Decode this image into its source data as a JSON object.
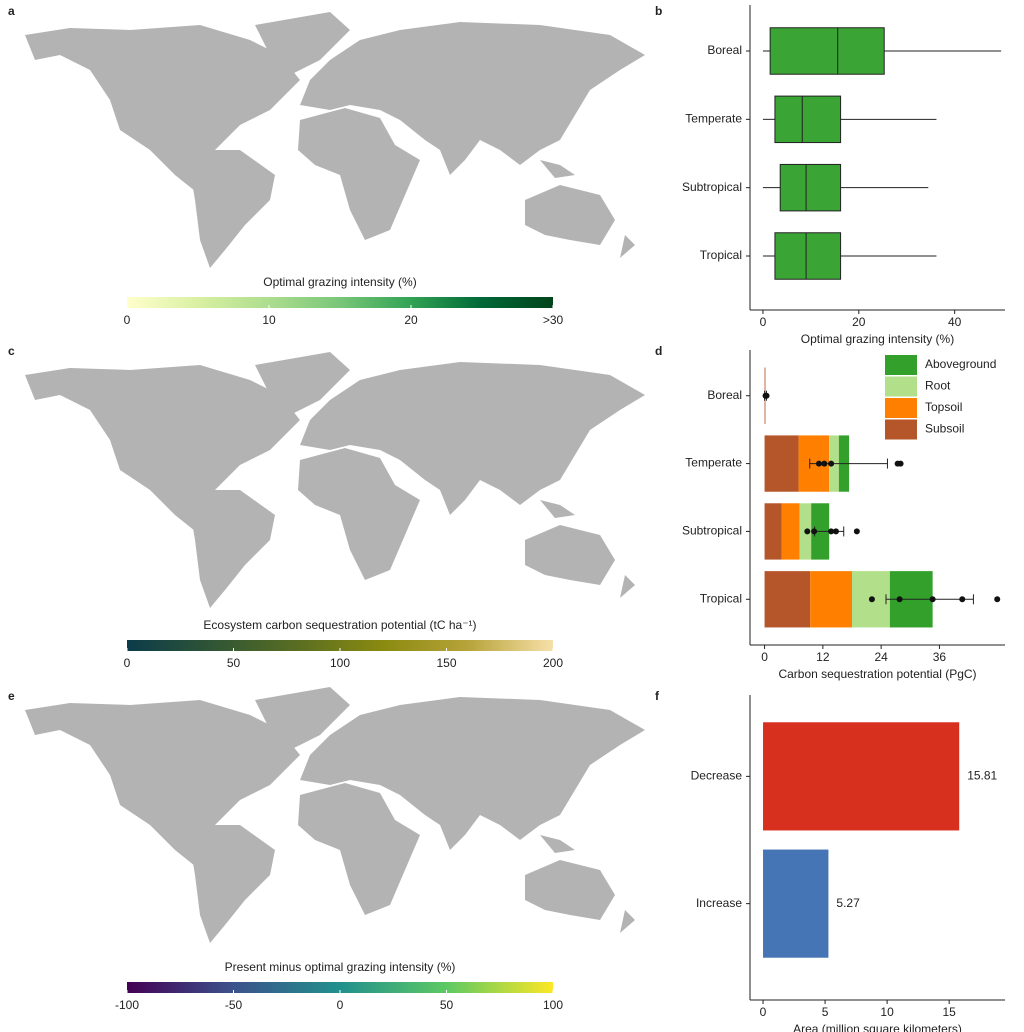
{
  "chart_data": [
    {
      "type": "map",
      "panel": "a",
      "colorbar_label": "Optimal grazing intensity (%)",
      "clim": [
        0,
        30
      ],
      "ticks": [
        0,
        10,
        20,
        {
          "value": 30,
          "label": ">30"
        }
      ],
      "colors": [
        "#ffffcc",
        "#d9f0a3",
        "#addd8e",
        "#78c679",
        "#31a354",
        "#006837",
        "#00441b"
      ]
    },
    {
      "type": "box",
      "panel": "b",
      "xlabel": "Optimal grazing intensity (%)",
      "categories": [
        "Boreal",
        "Temperate",
        "Subtropical",
        "Tropical"
      ],
      "min": [
        0,
        0,
        0,
        0
      ],
      "q1": [
        1.5,
        2.5,
        3.6,
        2.5
      ],
      "median": [
        15.6,
        8.2,
        9,
        9
      ],
      "q3": [
        25.3,
        16.2,
        16.2,
        16.2
      ],
      "max": [
        49.7,
        36.2,
        34.5,
        36.2
      ],
      "color": "#3aa435",
      "xlim": [
        -2.7,
        50.5
      ],
      "xticks": [
        0,
        20,
        40
      ]
    },
    {
      "type": "map",
      "panel": "c",
      "colorbar_label": "Ecosystem carbon sequestration potential (tC ha⁻¹)",
      "clim": [
        0,
        200
      ],
      "ticks": [
        0,
        50,
        100,
        150,
        200
      ],
      "colors": [
        "#0b3b4a",
        "#2f5535",
        "#5a6e22",
        "#8a8a10",
        "#b7a33a",
        "#f7e0a8"
      ]
    },
    {
      "type": "stacked_bar",
      "panel": "d",
      "xlabel": "Carbon sequestration potential (PgC)",
      "categories": [
        "Boreal",
        "Temperate",
        "Subtropical",
        "Tropical"
      ],
      "series": [
        {
          "name": "Subsoil",
          "color": "#b5562a",
          "values": [
            0.1,
            7.0,
            3.5,
            9.4
          ]
        },
        {
          "name": "Topsoil",
          "color": "#ff7f00",
          "values": [
            0.05,
            6.3,
            3.7,
            8.6
          ]
        },
        {
          "name": "Root",
          "color": "#b2df8a",
          "values": [
            0.05,
            2.0,
            2.4,
            7.8
          ]
        },
        {
          "name": "Aboveground",
          "color": "#33a02c",
          "values": [
            0.05,
            2.1,
            3.7,
            8.8
          ]
        }
      ],
      "points": [
        [
          0.2,
          0.4
        ],
        [
          11.2,
          12.3,
          13.7,
          27.4,
          28.0
        ],
        [
          8.8,
          10.2,
          13.7,
          14.7,
          19.0
        ],
        [
          22.1,
          27.8,
          34.6,
          40.7,
          47.9
        ]
      ],
      "error_low": [
        0,
        9.3,
        10.3,
        25.0
      ],
      "error_high": [
        0.4,
        25.3,
        16.3,
        43.0
      ],
      "legend": "top-right",
      "xlim": [
        -3,
        49.5
      ],
      "xticks": [
        0,
        12,
        24,
        36
      ]
    },
    {
      "type": "map",
      "panel": "e",
      "colorbar_label": "Present minus optimal grazing intensity (%)",
      "clim": [
        -100,
        100
      ],
      "ticks": [
        -100,
        -50,
        0,
        50,
        100
      ],
      "colors": [
        "#440154",
        "#3b528b",
        "#21908d",
        "#5dc963",
        "#fde725"
      ]
    },
    {
      "type": "bar",
      "panel": "f",
      "xlabel": "Area (million square kilometers)",
      "categories": [
        "Decrease",
        "Increase"
      ],
      "values": [
        15.81,
        5.27
      ],
      "colors": [
        "#d7301f",
        "#4575b4"
      ],
      "xlim": [
        -1.05,
        19.5
      ],
      "xticks": [
        0,
        5,
        10,
        15
      ],
      "data_labels": true
    }
  ]
}
